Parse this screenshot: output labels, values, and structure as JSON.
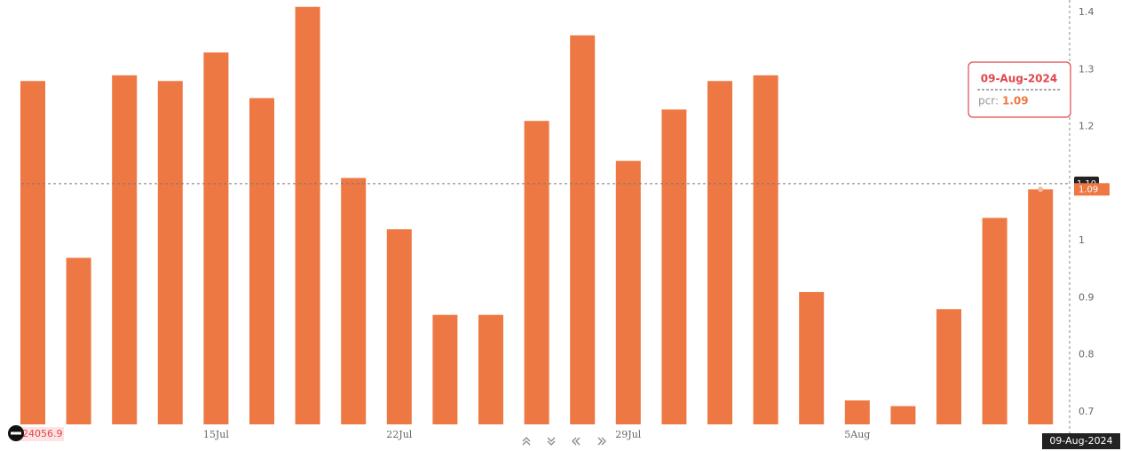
{
  "chart_data": {
    "type": "bar",
    "categories": [
      null,
      null,
      null,
      null,
      "15Jul",
      null,
      null,
      null,
      "22Jul",
      null,
      null,
      null,
      null,
      "29Jul",
      null,
      null,
      null,
      null,
      "5Aug",
      null,
      null,
      null,
      null
    ],
    "values": [
      1.28,
      0.97,
      1.29,
      1.28,
      1.33,
      1.25,
      1.41,
      1.11,
      1.02,
      0.87,
      0.87,
      1.21,
      1.36,
      1.14,
      1.23,
      1.28,
      1.29,
      0.91,
      0.72,
      0.71,
      0.88,
      1.04,
      1.09
    ],
    "color": "#ee7843",
    "ylim": [
      0.678,
      1.422
    ],
    "yticks": [
      0.7,
      0.8,
      0.9,
      1,
      1.2,
      1.3,
      1.4
    ],
    "grid": false,
    "crosshair": {
      "value": 1.1,
      "label": "1.10"
    },
    "tooltip": {
      "title": "09-Aug-2024",
      "series_label": "pcr:"
    },
    "index_value": 24056.9
  }
}
